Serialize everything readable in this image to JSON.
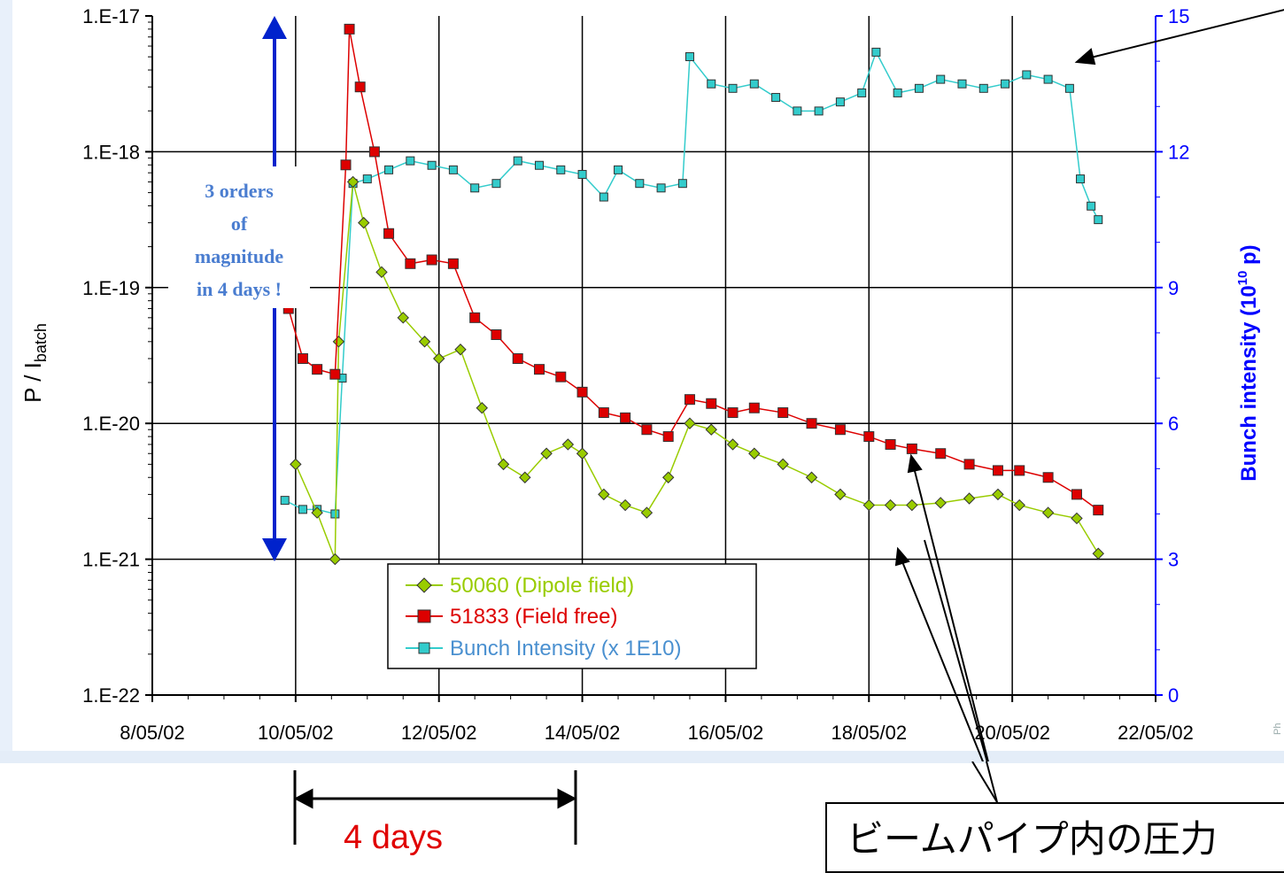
{
  "chart_data": {
    "type": "scatter",
    "y_left_label": "P / I",
    "y_left_label_sub": "batch",
    "y_right_label": "Bunch intensity (10",
    "y_right_label_sup": "10",
    "y_right_label_end": " p)",
    "y_left_scale": "log",
    "y_left_ticks": [
      "1.E-22",
      "1.E-21",
      "1.E-20",
      "1.E-19",
      "1.E-18",
      "1.E-17"
    ],
    "y_left_range": [
      1e-22,
      1e-17
    ],
    "y_right_ticks": [
      "0",
      "3",
      "6",
      "9",
      "12",
      "15"
    ],
    "y_right_range": [
      0,
      15
    ],
    "x_ticks": [
      "8/05/02",
      "10/05/02",
      "12/05/02",
      "14/05/02",
      "16/05/02",
      "18/05/02",
      "20/05/02",
      "22/05/02"
    ],
    "x_range_days": [
      8,
      22
    ],
    "grid": true,
    "legend_position": "bottom-center",
    "series": [
      {
        "name": "50060 (Dipole field)",
        "axis": "left",
        "color": "#99cc00",
        "marker": "diamond",
        "x": [
          10.0,
          10.3,
          10.55,
          10.6,
          10.8,
          10.95,
          11.2,
          11.5,
          11.8,
          12.0,
          12.3,
          12.6,
          12.9,
          13.2,
          13.5,
          13.8,
          14.0,
          14.3,
          14.6,
          14.9,
          15.2,
          15.5,
          15.8,
          16.1,
          16.4,
          16.8,
          17.2,
          17.6,
          18.0,
          18.3,
          18.6,
          19.0,
          19.4,
          19.8,
          20.1,
          20.5,
          20.9,
          21.2
        ],
        "y": [
          5e-21,
          2.2e-21,
          1e-21,
          4e-20,
          6e-19,
          3e-19,
          1.3e-19,
          6e-20,
          4e-20,
          3e-20,
          3.5e-20,
          1.3e-20,
          5e-21,
          4e-21,
          6e-21,
          7e-21,
          6e-21,
          3e-21,
          2.5e-21,
          2.2e-21,
          4e-21,
          1e-20,
          9e-21,
          7e-21,
          6e-21,
          5e-21,
          4e-21,
          3e-21,
          2.5e-21,
          2.5e-21,
          2.5e-21,
          2.6e-21,
          2.8e-21,
          3e-21,
          2.5e-21,
          2.2e-21,
          2e-21,
          1.1e-21
        ]
      },
      {
        "name": "51833 (Field free)",
        "axis": "left",
        "color": "#dd0000",
        "marker": "square",
        "x": [
          9.9,
          10.1,
          10.3,
          10.55,
          10.7,
          10.75,
          10.9,
          11.1,
          11.3,
          11.6,
          11.9,
          12.2,
          12.5,
          12.8,
          13.1,
          13.4,
          13.7,
          14.0,
          14.3,
          14.6,
          14.9,
          15.2,
          15.5,
          15.8,
          16.1,
          16.4,
          16.8,
          17.2,
          17.6,
          18.0,
          18.3,
          18.6,
          19.0,
          19.4,
          19.8,
          20.1,
          20.5,
          20.9,
          21.2
        ],
        "y": [
          7e-20,
          3e-20,
          2.5e-20,
          2.3e-20,
          8e-19,
          8e-18,
          3e-18,
          1e-18,
          2.5e-19,
          1.5e-19,
          1.6e-19,
          1.5e-19,
          6e-20,
          4.5e-20,
          3e-20,
          2.5e-20,
          2.2e-20,
          1.7e-20,
          1.2e-20,
          1.1e-20,
          9e-21,
          8e-21,
          1.5e-20,
          1.4e-20,
          1.2e-20,
          1.3e-20,
          1.2e-20,
          1e-20,
          9e-21,
          8e-21,
          7e-21,
          6.5e-21,
          6e-21,
          5e-21,
          4.5e-21,
          4.5e-21,
          4e-21,
          3e-21,
          2.3e-21
        ]
      },
      {
        "name": "Bunch Intensity (x 1E10)",
        "axis": "right",
        "color": "#33cccc",
        "marker": "square",
        "x": [
          9.85,
          10.1,
          10.3,
          10.55,
          10.65,
          10.8,
          11.0,
          11.3,
          11.6,
          11.9,
          12.2,
          12.5,
          12.8,
          13.1,
          13.4,
          13.7,
          14.0,
          14.3,
          14.5,
          14.8,
          15.1,
          15.4,
          15.5,
          15.8,
          16.1,
          16.4,
          16.7,
          17.0,
          17.3,
          17.6,
          17.9,
          18.1,
          18.4,
          18.7,
          19.0,
          19.3,
          19.6,
          19.9,
          20.2,
          20.5,
          20.8,
          20.95,
          21.1,
          21.2
        ],
        "y": [
          4.3,
          4.1,
          4.1,
          4.0,
          7.0,
          11.3,
          11.4,
          11.6,
          11.8,
          11.7,
          11.6,
          11.2,
          11.3,
          11.8,
          11.7,
          11.6,
          11.5,
          11.0,
          11.6,
          11.3,
          11.2,
          11.3,
          14.1,
          13.5,
          13.4,
          13.5,
          13.2,
          12.9,
          12.9,
          13.1,
          13.3,
          14.2,
          13.3,
          13.4,
          13.6,
          13.5,
          13.4,
          13.5,
          13.7,
          13.6,
          13.4,
          11.4,
          10.8,
          10.5
        ]
      }
    ]
  },
  "annotations": {
    "orders_text_1": "3 orders",
    "orders_text_2": "of",
    "orders_text_3": "magnitude",
    "orders_text_4": "in 4 days !",
    "days_label": "4 days",
    "jp_box_text": "ビームパイプ内の圧力"
  },
  "stamp": "Ph",
  "colors": {
    "green": "#99cc00",
    "red": "#dd0000",
    "cyan": "#33cccc",
    "axis_blue": "#0000ff",
    "arrow_blue": "#0022cc",
    "annotation_blue": "#4a7dd0"
  }
}
